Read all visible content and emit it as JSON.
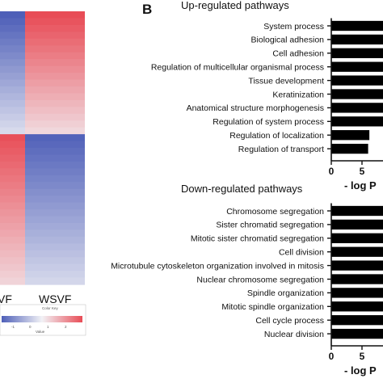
{
  "panel_b_letter": "B",
  "heatmap": {
    "column_labels": [
      "VF",
      "WSVF"
    ],
    "color_key_title": "Color Key",
    "color_key_axis_label": "Value",
    "color_key_ticks": [
      "-1",
      "0",
      "1",
      "2"
    ],
    "colors": {
      "low": "#4e5fb8",
      "mid": "#f2f2f6",
      "high": "#e84c56"
    }
  },
  "chart_data": [
    {
      "type": "bar",
      "orientation": "horizontal",
      "title": "Up-regulated pathways",
      "xlabel": "- log P",
      "categories": [
        "System process",
        "Biological adhesion",
        "Cell adhesion",
        "Regulation of multicellular organismal process",
        "Tissue development",
        "Keratinization",
        "Anatomical structure morphogenesis",
        "Regulation of system process",
        "Regulation of localization",
        "Regulation of transport"
      ],
      "values": [
        12,
        12,
        12,
        12,
        12,
        12,
        12,
        12,
        6.2,
        6.0
      ],
      "xticks": [
        "0",
        "5"
      ],
      "bar_color": "#000000"
    },
    {
      "type": "bar",
      "orientation": "horizontal",
      "title": "Down-regulated pathways",
      "xlabel": "- log P",
      "categories": [
        "Chromosome segregation",
        "Sister chromatid segregation",
        "Mitotic sister chromatid segregation",
        "Cell division",
        "Microtubule cytoskeleton organization involved in mitosis",
        "Nuclear chromosome segregation",
        "Spindle organization",
        "Mitotic spindle organization",
        "Cell cycle process",
        "Nuclear division"
      ],
      "values": [
        12,
        12,
        12,
        12,
        12,
        12,
        12,
        12,
        12,
        12
      ],
      "xticks": [
        "0",
        "5"
      ],
      "bar_color": "#000000"
    }
  ]
}
